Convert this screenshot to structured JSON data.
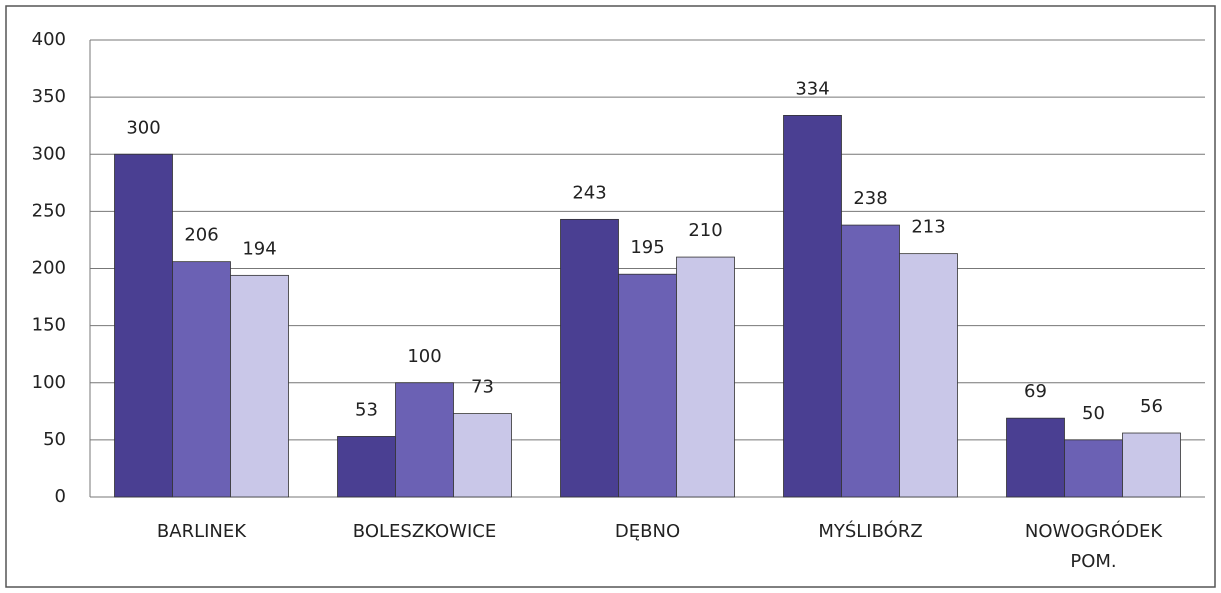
{
  "chart_data": {
    "type": "bar",
    "categories": [
      "BARLINEK",
      "BOLESZKOWICE",
      "DĘBNO",
      "MYŚLIBÓRZ",
      "NOWOGRÓDEK POM."
    ],
    "series": [
      {
        "color": "#4a3f92",
        "values": [
          300,
          53,
          243,
          334,
          69
        ]
      },
      {
        "color": "#6b61b4",
        "values": [
          206,
          100,
          195,
          238,
          50
        ]
      },
      {
        "color": "#c9c7e8",
        "values": [
          194,
          73,
          210,
          213,
          56
        ]
      }
    ],
    "ylim": [
      0,
      400
    ],
    "yticks": [
      0,
      50,
      100,
      150,
      200,
      250,
      300,
      350,
      400
    ],
    "grid": true
  }
}
